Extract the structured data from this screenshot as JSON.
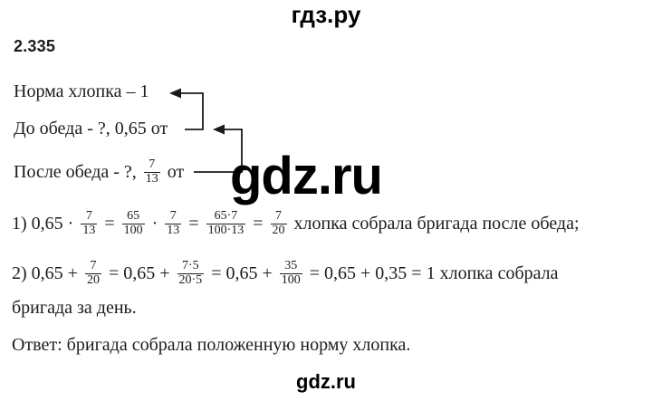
{
  "header": {
    "brand": "гдз.ру"
  },
  "problem": {
    "number": "2.335"
  },
  "given": {
    "norm_line": "Норма хлопка – 1",
    "before_lunch_line": "До обеда - ?, 0,65 от",
    "after_lunch_tokens": [
      {
        "type": "text",
        "value": "После обеда - ?, "
      },
      {
        "type": "frac",
        "num": "7",
        "den": "13"
      },
      {
        "type": "text",
        "value": " от "
      }
    ]
  },
  "solution": {
    "step1_tokens": [
      {
        "type": "text",
        "value": "1) 0,65 · "
      },
      {
        "type": "frac",
        "num": "7",
        "den": "13"
      },
      {
        "type": "text",
        "value": " = "
      },
      {
        "type": "frac",
        "num": "65",
        "den": "100"
      },
      {
        "type": "text",
        "value": " · "
      },
      {
        "type": "frac",
        "num": "7",
        "den": "13"
      },
      {
        "type": "text",
        "value": " = "
      },
      {
        "type": "frac",
        "num": "65·7",
        "den": "100·13"
      },
      {
        "type": "text",
        "value": " = "
      },
      {
        "type": "frac",
        "num": "7",
        "den": "20"
      },
      {
        "type": "text",
        "value": " хлопка собрала бригада после обеда;"
      }
    ],
    "step2_tokens": [
      {
        "type": "text",
        "value": "2) 0,65 + "
      },
      {
        "type": "frac",
        "num": "7",
        "den": "20"
      },
      {
        "type": "text",
        "value": " = 0,65 + "
      },
      {
        "type": "frac",
        "num": "7·5",
        "den": "20·5"
      },
      {
        "type": "text",
        "value": " = 0,65 + "
      },
      {
        "type": "frac",
        "num": "35",
        "den": "100"
      },
      {
        "type": "text",
        "value": " = 0,65 + 0,35 = 1 хлопка собрала"
      }
    ],
    "step2_continuation": "бригада за день.",
    "answer": "Ответ: бригада собрала положенную норму хлопка."
  },
  "watermark": {
    "center": "gdz.ru",
    "footer": "gdz.ru"
  },
  "colors": {
    "text": "#1c1c1c",
    "arrow": "#1a1a1a",
    "background": "#ffffff",
    "brand": "#000000"
  }
}
